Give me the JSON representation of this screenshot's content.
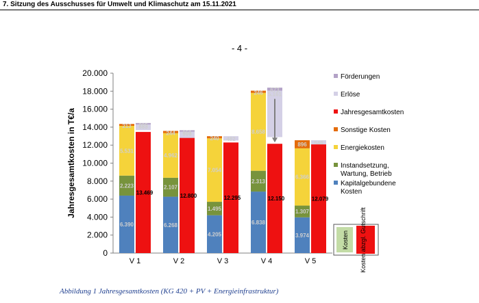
{
  "header": {
    "title": "7. Sitzung des Ausschusses für Umwelt und Klimaschutz am 15.11.2021",
    "page_number": "- 4 -"
  },
  "caption": "Abbildung 1 Jahresgesamtkosten (KG 420 + PV + Energieinfrastruktur)",
  "legend_box": {
    "kosten": "Kosten",
    "kosten_abzgl": "Kosten abzgl. Gutschrift",
    "colors": {
      "kosten": "#c3dca6",
      "kosten_abzgl": "#ee1111"
    }
  },
  "chart_data": {
    "type": "bar",
    "stacked": true,
    "ylabel": "Jahresgesamtkosten in T€/a",
    "ylim": [
      0,
      20000
    ],
    "yticks": [
      0,
      2000,
      4000,
      6000,
      8000,
      10000,
      12000,
      14000,
      16000,
      18000,
      20000
    ],
    "ytick_labels": [
      "0",
      "2.000",
      "4.000",
      "6.000",
      "8.000",
      "10.000",
      "12.000",
      "14.000",
      "16.000",
      "18.000",
      "20.000"
    ],
    "categories": [
      "V 1",
      "V 2",
      "V 3",
      "V 4",
      "V 5"
    ],
    "cost_series": [
      {
        "name": "Kapitalgebundene Kosten",
        "color": "#4f81bd",
        "values": [
          6390,
          6268,
          4205,
          6838,
          3974
        ],
        "labels": [
          "6.390",
          "6.268",
          "4.205",
          "6.838",
          "3.974"
        ]
      },
      {
        "name": "Instandsetzung, Wartung, Betrieb",
        "color": "#77933c",
        "values": [
          2223,
          2107,
          1495,
          2313,
          1307
        ],
        "labels": [
          "2.223",
          "2.107",
          "1.495",
          "2.313",
          "1.307"
        ]
      },
      {
        "name": "Energiekosten",
        "color": "#f5d33a",
        "values": [
          5531,
          4962,
          7054,
          8658,
          6366
        ],
        "labels": [
          "5.531",
          "4.962",
          "7.054",
          "8.658",
          "6.366"
        ]
      },
      {
        "name": "Sonstige Kosten",
        "color": "#e46c0a",
        "values": [
          213,
          244,
          240,
          246,
          896
        ],
        "labels": [
          "213",
          "244",
          "240",
          "246",
          "896"
        ]
      }
    ],
    "erloese": {
      "name": "Erlöse",
      "color": "#d4d0e6",
      "values": [
        683,
        900,
        482,
        5161,
        546
      ],
      "labels": [
        "683",
        "900",
        "482",
        "5.161",
        "546"
      ]
    },
    "foerderungen": {
      "name": "Förderungen",
      "color": "#b3a2c7",
      "values": [
        205,
        151,
        0,
        673,
        0
      ],
      "labels": [
        "205",
        "151",
        "",
        "673",
        ""
      ]
    },
    "jahresgesamtkosten": {
      "name": "Jahresgesamtkosten",
      "color": "#ee1111",
      "values": [
        13469,
        12800,
        12295,
        12150,
        12079
      ],
      "labels": [
        "13.469",
        "12.800",
        "12.295",
        "12.150",
        "12.079"
      ]
    },
    "legend": [
      "Förderungen",
      "Erlöse",
      "Jahresgesamtkosten",
      "Sonstige Kosten",
      "Energiekosten",
      "Instandsetzung, Wartung, Betrieb",
      "Kapitalgebundene Kosten"
    ],
    "legend_placement": "right",
    "grid": false
  }
}
